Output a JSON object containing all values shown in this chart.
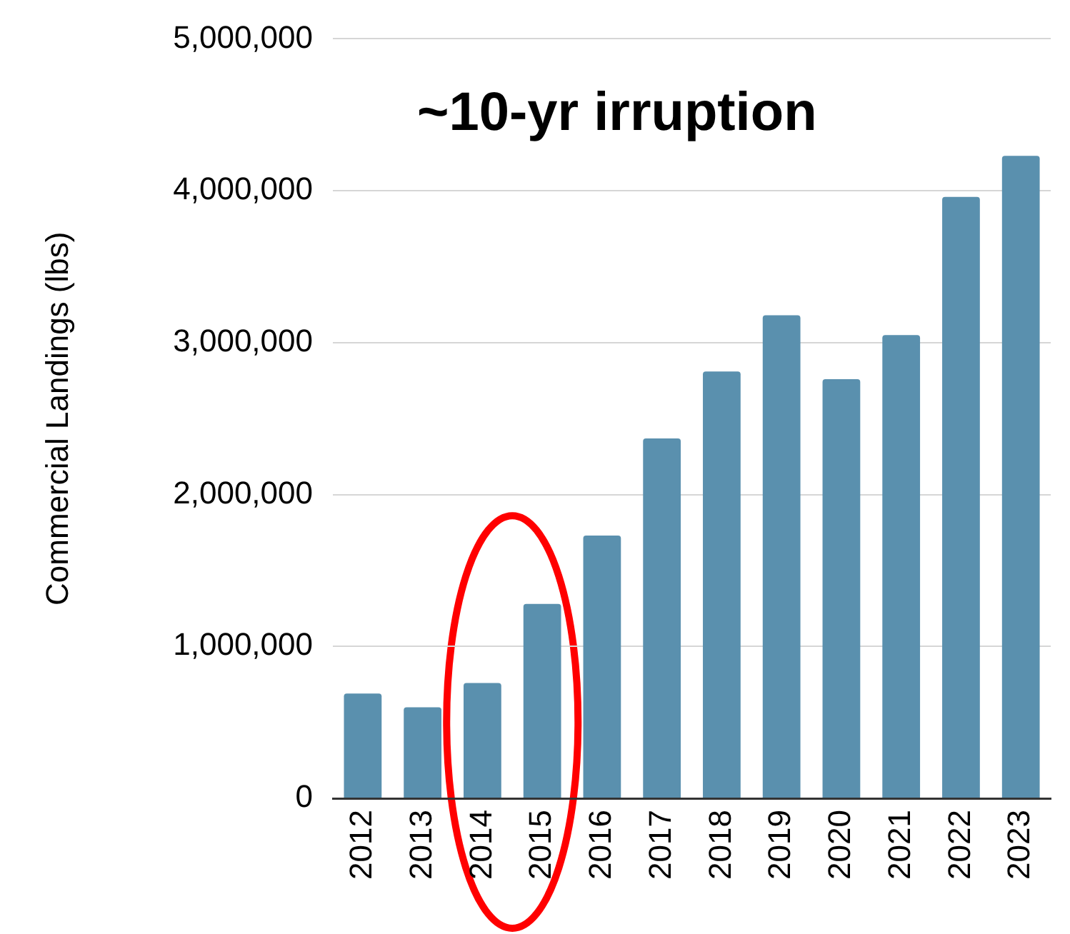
{
  "chart_data": {
    "type": "bar",
    "ylabel": "Commercial Landings (lbs)",
    "categories": [
      "2012",
      "2013",
      "2014",
      "2015",
      "2016",
      "2017",
      "2018",
      "2019",
      "2020",
      "2021",
      "2022",
      "2023"
    ],
    "values": [
      690000,
      600000,
      760000,
      1280000,
      1730000,
      2370000,
      2810000,
      3180000,
      2760000,
      3050000,
      3960000,
      4230000
    ],
    "color": "#5a90ae",
    "ylim": [
      0,
      5000000
    ],
    "yticks": [
      0,
      {
        "value": 1000000,
        "label": "1,000,000"
      },
      {
        "value": 2000000,
        "label": "2,000,000"
      },
      {
        "value": 3000000,
        "label": "3,000,000"
      },
      {
        "value": 4000000,
        "label": "4,000,000"
      },
      {
        "value": 5000000,
        "label": "5,000,000"
      }
    ],
    "grid": "y",
    "annotations": [
      "~10-yr irruption"
    ]
  }
}
